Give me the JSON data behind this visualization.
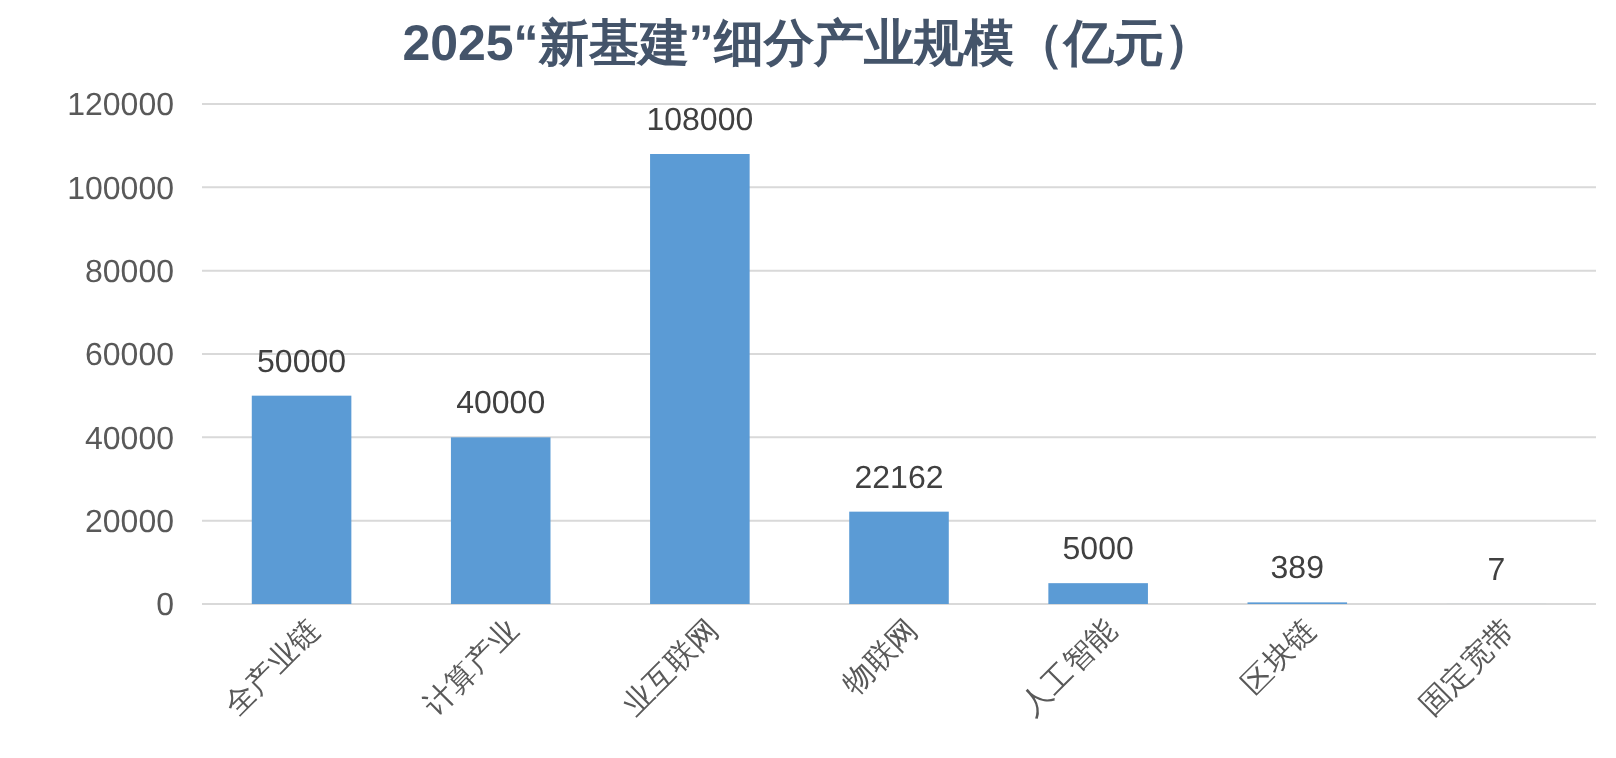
{
  "chart_data": {
    "type": "bar",
    "title": "2025“新基建”细分产业规模（亿元）",
    "categories": [
      "全产业链",
      "计算产业",
      "业互联网",
      "物联网",
      "人工智能",
      "区块链",
      "固定宽带"
    ],
    "values": [
      50000,
      40000,
      108000,
      22162,
      5000,
      389,
      7
    ],
    "color": "#5b9bd5",
    "ylim": [
      0,
      120000
    ],
    "yticks": [
      0,
      20000,
      40000,
      60000,
      80000,
      100000,
      120000
    ],
    "grid": "y",
    "data_labels": true
  }
}
